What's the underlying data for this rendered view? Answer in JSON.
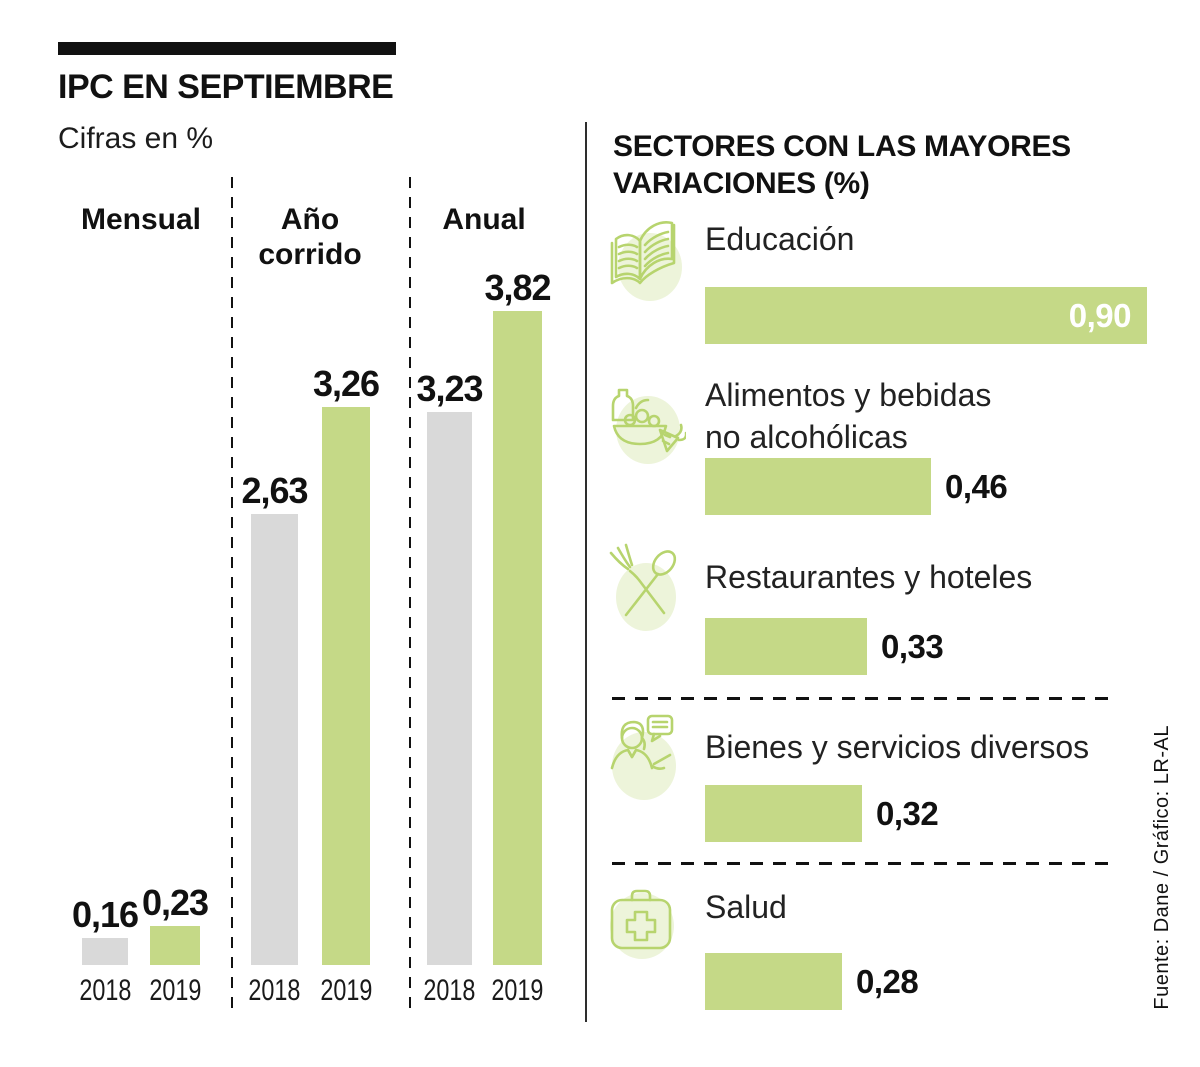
{
  "header": {
    "title": "IPC EN SEPTIEMBRE",
    "subtitle": "Cifras en %"
  },
  "source_note": "Fuente: Dane / Gráfico: LR-AL",
  "palette": {
    "bar_green": "#c5d987",
    "bar_gray": "#d9d9d9",
    "icon_green": "#b7d46e",
    "icon_bg": "#edf4da",
    "text": "#111111"
  },
  "left_chart": {
    "headers": [
      {
        "lines": [
          "Mensual"
        ]
      },
      {
        "lines": [
          "Año",
          "corrido"
        ]
      },
      {
        "lines": [
          "Anual"
        ]
      }
    ]
  },
  "right_panel": {
    "title_lines": [
      "SECTORES CON LAS MAYORES",
      "VARIACIONES (%)"
    ],
    "items": [
      {
        "icon": "open-book-icon",
        "label_lines": [
          "Educación"
        ],
        "value": 0.9,
        "display": "0,90",
        "value_placement": "inside"
      },
      {
        "icon": "groceries-icon",
        "label_lines": [
          "Alimentos y bebidas",
          "no alcohólicas"
        ],
        "value": 0.46,
        "display": "0,46",
        "value_placement": "outside"
      },
      {
        "icon": "fork-spoon-icon",
        "label_lines": [
          "Restaurantes y hoteles"
        ],
        "value": 0.33,
        "display": "0,33",
        "value_placement": "outside"
      },
      {
        "icon": "person-chat-icon",
        "label_lines": [
          "Bienes y servicios diversos"
        ],
        "value": 0.32,
        "display": "0,32",
        "value_placement": "outside"
      },
      {
        "icon": "first-aid-kit-icon",
        "label_lines": [
          "Salud"
        ],
        "value": 0.28,
        "display": "0,28",
        "value_placement": "outside"
      }
    ]
  },
  "chart_data": [
    {
      "type": "bar",
      "title": "IPC EN SEPTIEMBRE",
      "subtitle": "Cifras en %",
      "units": "%",
      "group_labels": [
        "Mensual",
        "Año corrido",
        "Anual"
      ],
      "series": [
        {
          "name": "2018",
          "color": "#d9d9d9",
          "values": [
            0.16,
            2.63,
            3.23
          ],
          "display": [
            "0,16",
            "2,63",
            "3,23"
          ]
        },
        {
          "name": "2019",
          "color": "#c5d987",
          "values": [
            0.23,
            3.26,
            3.82
          ],
          "display": [
            "0,23",
            "3,26",
            "3,82"
          ]
        }
      ],
      "ylim": [
        0,
        3.82
      ],
      "grid": false,
      "legend": "none"
    },
    {
      "type": "bar",
      "orientation": "horizontal",
      "title": "SECTORES CON LAS MAYORES VARIACIONES (%)",
      "categories": [
        "Educación",
        "Alimentos y bebidas no alcohólicas",
        "Restaurantes y hoteles",
        "Bienes y servicios diversos",
        "Salud"
      ],
      "values": [
        0.9,
        0.46,
        0.33,
        0.32,
        0.28
      ],
      "display": [
        "0,90",
        "0,46",
        "0,33",
        "0,32",
        "0,28"
      ],
      "bar_color": "#c5d987",
      "xlim": [
        0,
        0.9
      ]
    }
  ]
}
